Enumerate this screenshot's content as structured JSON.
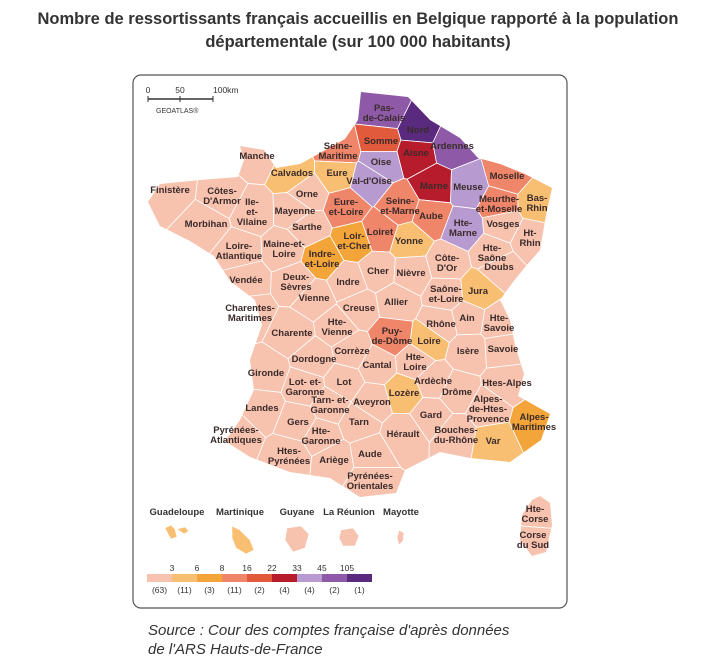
{
  "header": {
    "title_lines": [
      "Nombre de ressortissants français accueillis en Belgique rapporté à la population",
      "départementale (sur 100 000 habitants)"
    ]
  },
  "scale": {
    "labels": [
      "0",
      "50",
      "100km"
    ],
    "credit": "GEOATLAS®"
  },
  "departments": [
    {
      "lines": [
        "Pas-",
        "de-Calais"
      ],
      "color": "#8e5aa8"
    },
    {
      "lines": [
        "Nord"
      ],
      "color": "#5a2a7f"
    },
    {
      "lines": [
        "Somme"
      ],
      "color": "#e25a3c"
    },
    {
      "lines": [
        "Seine-",
        "Maritime"
      ],
      "color": "#ef8569"
    },
    {
      "lines": [
        "Aisne"
      ],
      "color": "#b71c2c"
    },
    {
      "lines": [
        "Ardennes"
      ],
      "color": "#8e5aa8"
    },
    {
      "lines": [
        "Manche"
      ],
      "color": "#f7c2ae"
    },
    {
      "lines": [
        "Oise"
      ],
      "color": "#b69ad0"
    },
    {
      "lines": [
        "Calvados"
      ],
      "color": "#f8bf72"
    },
    {
      "lines": [
        "Eure"
      ],
      "color": "#f8bf72"
    },
    {
      "lines": [
        "Val-d'Oise"
      ],
      "color": "#b69ad0"
    },
    {
      "lines": [
        "Marne"
      ],
      "color": "#b71c2c"
    },
    {
      "lines": [
        "Meuse"
      ],
      "color": "#b69ad0"
    },
    {
      "lines": [
        "Moselle"
      ],
      "color": "#ef8569"
    },
    {
      "lines": [
        "Finistère"
      ],
      "color": "#f7c2ae"
    },
    {
      "lines": [
        "Côtes-",
        "D'Armor"
      ],
      "color": "#f7c2ae"
    },
    {
      "lines": [
        "Orne"
      ],
      "color": "#f7c2ae"
    },
    {
      "lines": [
        "Ile-",
        "et-",
        "Vilaine"
      ],
      "color": "#f7c2ae"
    },
    {
      "lines": [
        "Mayenne"
      ],
      "color": "#f7c2ae"
    },
    {
      "lines": [
        "Eure-",
        "et-Loire"
      ],
      "color": "#ef8569"
    },
    {
      "lines": [
        "Seine-",
        "et-Marne"
      ],
      "color": "#ef8569"
    },
    {
      "lines": [
        "Meurthe-",
        "et-Moselle"
      ],
      "color": "#ef8569"
    },
    {
      "lines": [
        "Bas-",
        "Rhin"
      ],
      "color": "#f8bf72"
    },
    {
      "lines": [
        "Morbihan"
      ],
      "color": "#f7c2ae"
    },
    {
      "lines": [
        "Sarthe"
      ],
      "color": "#f7c2ae"
    },
    {
      "lines": [
        "Aube"
      ],
      "color": "#ef8569"
    },
    {
      "lines": [
        "Vosges"
      ],
      "color": "#f7c2ae"
    },
    {
      "lines": [
        "Loiret"
      ],
      "color": "#ef8569"
    },
    {
      "lines": [
        "Yonne"
      ],
      "color": "#f8bf72"
    },
    {
      "lines": [
        "Hte-",
        "Marne"
      ],
      "color": "#b69ad0"
    },
    {
      "lines": [
        "Ht-",
        "Rhin"
      ],
      "color": "#f7c2ae"
    },
    {
      "lines": [
        "Loir-",
        "et-Cher"
      ],
      "color": "#f3a53a"
    },
    {
      "lines": [
        "Maine-et-",
        "Loire"
      ],
      "color": "#f7c2ae"
    },
    {
      "lines": [
        "Loire-",
        "Atlantique"
      ],
      "color": "#f7c2ae"
    },
    {
      "lines": [
        "Indre-",
        "et-Loire"
      ],
      "color": "#f3a53a"
    },
    {
      "lines": [
        "Hte-",
        "Saône"
      ],
      "color": "#f7c2ae"
    },
    {
      "lines": [
        "Côte-",
        "D'Or"
      ],
      "color": "#f7c2ae"
    },
    {
      "lines": [
        "Cher"
      ],
      "color": "#f7c2ae"
    },
    {
      "lines": [
        "Nièvre"
      ],
      "color": "#f7c2ae"
    },
    {
      "lines": [
        "Doubs"
      ],
      "color": "#f7c2ae"
    },
    {
      "lines": [
        "Vendée"
      ],
      "color": "#f7c2ae"
    },
    {
      "lines": [
        "Deux-",
        "Sèvres"
      ],
      "color": "#f7c2ae"
    },
    {
      "lines": [
        "Indre"
      ],
      "color": "#f7c2ae"
    },
    {
      "lines": [
        "Jura"
      ],
      "color": "#f8bf72"
    },
    {
      "lines": [
        "Allier"
      ],
      "color": "#f7c2ae"
    },
    {
      "lines": [
        "Saône-",
        "et-Loire"
      ],
      "color": "#f7c2ae"
    },
    {
      "lines": [
        "Vienne"
      ],
      "color": "#f7c2ae"
    },
    {
      "lines": [
        "Charentes-",
        "Maritimes"
      ],
      "color": "#f7c2ae"
    },
    {
      "lines": [
        "Creuse"
      ],
      "color": "#f7c2ae"
    },
    {
      "lines": [
        "Ain"
      ],
      "color": "#f7c2ae"
    },
    {
      "lines": [
        "Hte-",
        "Savoie"
      ],
      "color": "#f7c2ae"
    },
    {
      "lines": [
        "Charente"
      ],
      "color": "#f7c2ae"
    },
    {
      "lines": [
        "Hte-",
        "Vienne"
      ],
      "color": "#f7c2ae"
    },
    {
      "lines": [
        "Rhône"
      ],
      "color": "#f7c2ae"
    },
    {
      "lines": [
        "Puy-",
        "de-Dôme"
      ],
      "color": "#ef8569"
    },
    {
      "lines": [
        "Loire"
      ],
      "color": "#f8bf72"
    },
    {
      "lines": [
        "Corrèze"
      ],
      "color": "#f7c2ae"
    },
    {
      "lines": [
        "Isère"
      ],
      "color": "#f7c2ae"
    },
    {
      "lines": [
        "Savoie"
      ],
      "color": "#f7c2ae"
    },
    {
      "lines": [
        "Dordogne"
      ],
      "color": "#f7c2ae"
    },
    {
      "lines": [
        "Hte-",
        "Loire"
      ],
      "color": "#f7c2ae"
    },
    {
      "lines": [
        "Cantal"
      ],
      "color": "#f7c2ae"
    },
    {
      "lines": [
        "Gironde"
      ],
      "color": "#f7c2ae"
    },
    {
      "lines": [
        "Ardèche"
      ],
      "color": "#f7c2ae"
    },
    {
      "lines": [
        "Lot- et-",
        "Garonne"
      ],
      "color": "#f7c2ae"
    },
    {
      "lines": [
        "Lot"
      ],
      "color": "#f7c2ae"
    },
    {
      "lines": [
        "Htes-Alpes"
      ],
      "color": "#f7c2ae"
    },
    {
      "lines": [
        "Lozère"
      ],
      "color": "#f8bf72"
    },
    {
      "lines": [
        "Drôme"
      ],
      "color": "#f7c2ae"
    },
    {
      "lines": [
        "Aveyron"
      ],
      "color": "#f7c2ae"
    },
    {
      "lines": [
        "Tarn- et-",
        "Garonne"
      ],
      "color": "#f7c2ae"
    },
    {
      "lines": [
        "Alpes-",
        "de-Htes-",
        "Provence"
      ],
      "color": "#f7c2ae"
    },
    {
      "lines": [
        "Landes"
      ],
      "color": "#f7c2ae"
    },
    {
      "lines": [
        "Alpes-",
        "Maritimes"
      ],
      "color": "#f3a53a"
    },
    {
      "lines": [
        "Gers"
      ],
      "color": "#f7c2ae"
    },
    {
      "lines": [
        "Tarn"
      ],
      "color": "#f7c2ae"
    },
    {
      "lines": [
        "Gard"
      ],
      "color": "#f7c2ae"
    },
    {
      "lines": [
        "Pyrénées-",
        "Atlantiques"
      ],
      "color": "#f7c2ae"
    },
    {
      "lines": [
        "Hte-",
        "Garonne"
      ],
      "color": "#f7c2ae"
    },
    {
      "lines": [
        "Hérault"
      ],
      "color": "#f7c2ae"
    },
    {
      "lines": [
        "Bouches-",
        "du-Rhône"
      ],
      "color": "#f7c2ae"
    },
    {
      "lines": [
        "Var"
      ],
      "color": "#f8bf72"
    },
    {
      "lines": [
        "Htes-",
        "Pyrénées"
      ],
      "color": "#f7c2ae"
    },
    {
      "lines": [
        "Aude"
      ],
      "color": "#f7c2ae"
    },
    {
      "lines": [
        "Ariège"
      ],
      "color": "#f7c2ae"
    },
    {
      "lines": [
        "Pyrénées-",
        "Orientales"
      ],
      "color": "#f7c2ae"
    },
    {
      "lines": [
        "Hte-",
        "Corse"
      ],
      "color": "#f7c2ae"
    },
    {
      "lines": [
        "Corse",
        "du Sud"
      ],
      "color": "#f7c2ae"
    }
  ],
  "overseas": [
    {
      "name": "Guadeloupe",
      "color": "#f8bf72"
    },
    {
      "name": "Martinique",
      "color": "#f8bf72"
    },
    {
      "name": "Guyane",
      "color": "#f7c2ae"
    },
    {
      "name": "La Réunion",
      "color": "#f7c2ae"
    },
    {
      "name": "Mayotte",
      "color": "#f7c2ae"
    }
  ],
  "legend": {
    "breaks": [
      3,
      6,
      8,
      16,
      22,
      33,
      45,
      105
    ],
    "classes": [
      {
        "color": "#f7c2ae",
        "count": {
          "value": 63,
          "label": "(63)"
        }
      },
      {
        "color": "#f8bf72",
        "count": {
          "value": 11,
          "label": "(11)"
        }
      },
      {
        "color": "#f3a53a",
        "count": {
          "value": 3,
          "label": "(3)"
        }
      },
      {
        "color": "#ef8569",
        "count": {
          "value": 11,
          "label": "(11)"
        }
      },
      {
        "color": "#e25a3c",
        "count": {
          "value": 2,
          "label": "(2)"
        }
      },
      {
        "color": "#b71c2c",
        "count": {
          "value": 4,
          "label": "(4)"
        }
      },
      {
        "color": "#b69ad0",
        "count": {
          "value": 4,
          "label": "(4)"
        }
      },
      {
        "color": "#8e5aa8",
        "count": {
          "value": 2,
          "label": "(2)"
        }
      },
      {
        "color": "#5a2a7f",
        "count": {
          "value": 1,
          "label": "(1)"
        }
      }
    ]
  },
  "source": {
    "lines": [
      "Source : Cour des comptes française d'après données",
      "de l'ARS Hauts-de-France"
    ]
  }
}
